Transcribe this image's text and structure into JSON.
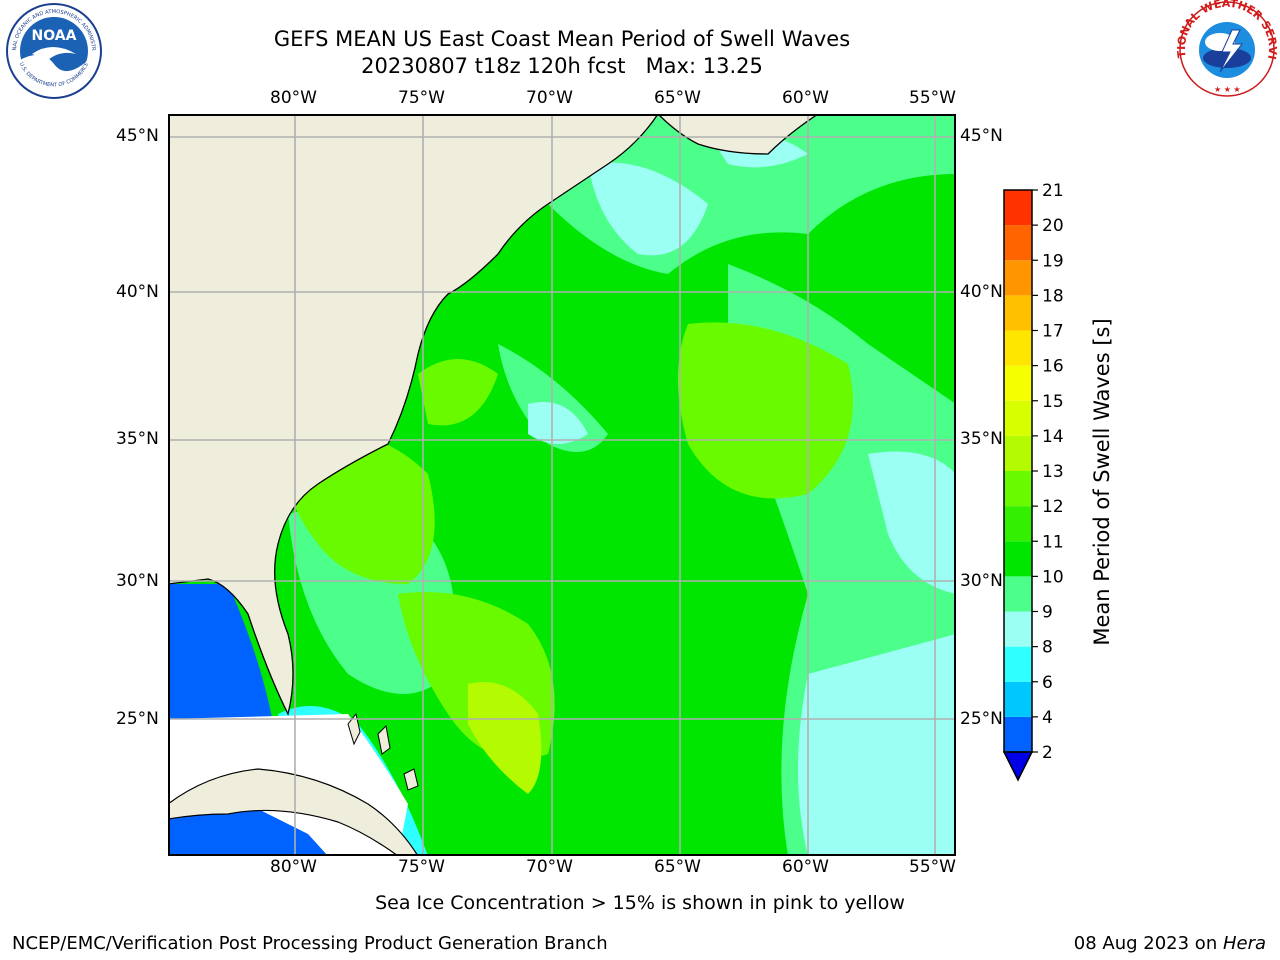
{
  "header": {
    "title_line1": "GEFS MEAN US East Coast Mean Period of Swell Waves",
    "title_line2": "20230807 t18z 120h fcst   Max: 13.25"
  },
  "logos": {
    "noaa_text": "NOAA",
    "noaa_ring_text": "NATIONAL OCEANIC AND ATMOSPHERIC ADMINISTRATION",
    "noaa_ring_text_bottom": "U.S. DEPARTMENT OF COMMERCE",
    "nws_ring_text": "NATIONAL WEATHER SERVICE"
  },
  "map": {
    "lon_labels_top": [
      "80°W",
      "75°W",
      "70°W",
      "65°W",
      "60°W",
      "55°W"
    ],
    "lon_labels_bottom": [
      "80°W",
      "75°W",
      "70°W",
      "65°W",
      "60°W",
      "55°W"
    ],
    "lat_labels_left": [
      "45°N",
      "40°N",
      "35°N",
      "30°N",
      "25°N"
    ],
    "lat_labels_right": [
      "45°N",
      "40°N",
      "35°N",
      "30°N",
      "25°N"
    ],
    "colors": {
      "land": "#efeedc",
      "grid": "#b0b0b0",
      "coast": "#000000"
    }
  },
  "colorbar": {
    "label": "Mean Period of Swell Waves [s]",
    "ticks": [
      "2",
      "4",
      "6",
      "8",
      "9",
      "10",
      "11",
      "12",
      "13",
      "14",
      "15",
      "16",
      "17",
      "18",
      "19",
      "20",
      "21"
    ],
    "colors": [
      "#0063ff",
      "#00c8ff",
      "#30ffff",
      "#9cfff4",
      "#4cff8a",
      "#00e600",
      "#33f000",
      "#6afa00",
      "#b4fa00",
      "#d8ff00",
      "#f5ff00",
      "#ffe600",
      "#ffc000",
      "#ff9600",
      "#ff6400",
      "#ff3200"
    ],
    "extend_color": "#0000e6"
  },
  "footer": {
    "note": "Sea Ice Concentration > 15% is shown in pink to yellow",
    "credit_left": "NCEP/EMC/Verification Post Processing Product Generation Branch",
    "credit_right_prefix": "08 Aug 2023 on ",
    "credit_right_machine": "Hera"
  }
}
